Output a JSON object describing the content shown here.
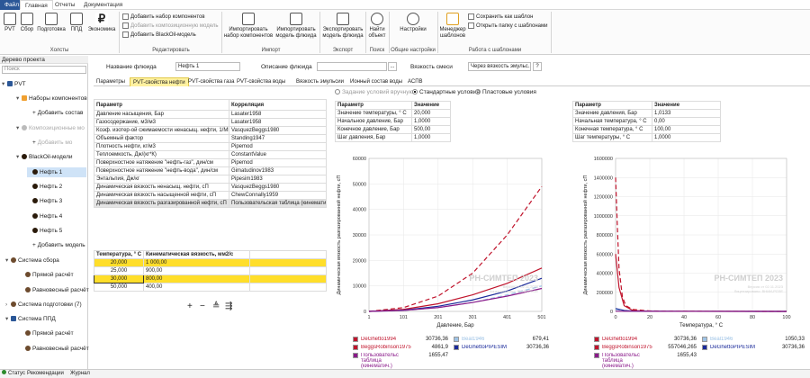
{
  "menu": {
    "file": "Файл",
    "tabs": [
      "Главная",
      "Отчеты",
      "Документация"
    ]
  },
  "ribbon": {
    "buttons": [
      "PVT",
      "Сбор",
      "Подготовка",
      "ППД",
      "Экономика"
    ],
    "group_wells": "Холсты",
    "edit_items": [
      "Добавить набор компонентов",
      "Добавить композиционную модель",
      "Добавить BlackOil-модель"
    ],
    "group_edit": "Редактировать",
    "import_buttons": [
      "Импортировать набор компонентов",
      "Импортировать модель флюида"
    ],
    "group_import": "Импорт",
    "export_button": "Экспортировать модель флюида",
    "group_export": "Экспорт",
    "find_button": "Найти объект",
    "group_find": "Поиск",
    "settings_button": "Настройки",
    "group_settings": "Общие настройки",
    "template_manager": "Менеджер шаблонов",
    "template_items": [
      "Сохранить как шаблон",
      "Открыть папку с шаблонами"
    ],
    "group_templates": "Работа с шаблонами"
  },
  "tree": {
    "title": "Дерево проекта",
    "search_placeholder": "Поиск",
    "items": [
      {
        "label": "PVT",
        "toggle": "▾"
      },
      {
        "label": "Наборы компонентов",
        "toggle": "▾"
      },
      {
        "label": "Добавить состав",
        "toggle": ""
      },
      {
        "label": "Композиционные мо",
        "toggle": "▾"
      },
      {
        "label": "Добавить мо",
        "toggle": ""
      },
      {
        "label": "BlackOil-модели",
        "toggle": "▾"
      },
      {
        "label": "Нефть 1",
        "toggle": ""
      },
      {
        "label": "Нефть 2",
        "toggle": ""
      },
      {
        "label": "Нефть 3",
        "toggle": ""
      },
      {
        "label": "Нефть 4",
        "toggle": ""
      },
      {
        "label": "Нефть 5",
        "toggle": ""
      },
      {
        "label": "Добавить модель",
        "toggle": ""
      },
      {
        "label": "Система сбора",
        "toggle": "▾"
      },
      {
        "label": "Прямой расчёт",
        "toggle": ""
      },
      {
        "label": "Равновесный расчёт",
        "toggle": ""
      },
      {
        "label": "Система подготовки (7)",
        "toggle": "›"
      },
      {
        "label": "Система ППД",
        "toggle": "▾"
      },
      {
        "label": "Прямой расчёт",
        "toggle": ""
      },
      {
        "label": "Равновесный расчёт",
        "toggle": ""
      }
    ]
  },
  "status": [
    "Статус",
    "Рекомендации",
    "Журнал"
  ],
  "fluid": {
    "name_label": "Название флюида",
    "name_value": "Нефть 1",
    "desc_label": "Описание флюида",
    "desc_value": "",
    "desc_btn": "...",
    "mix_label": "Вязкость смеси",
    "mix_value": "Через вязкость эмульс...",
    "mix_btn": "?"
  },
  "tabs": [
    "Параметры",
    "PVT-свойства нефти",
    "PVT-свойства газа",
    "PVT-свойства воды",
    "Вязкость эмульсии",
    "Ионный состав воды",
    "АСПВ"
  ],
  "corr": {
    "headers": [
      "Параметр",
      "Корреляция"
    ],
    "rows": [
      [
        "Давление насыщения, Бар",
        "Lasater1958"
      ],
      [
        "Газосодержание, м3/м3",
        "Lasater1958"
      ],
      [
        "Коэф. изотер-ой сжимаемости ненасыщ. нефти, 1/МПа",
        "VasquezBeggs1980"
      ],
      [
        "Объемный фактор",
        "Standing1947"
      ],
      [
        "Плотность нефти, кг/м3",
        "Pipemod"
      ],
      [
        "Теплоемкость, Дж/(кг*К)",
        "ConstantValue"
      ],
      [
        "Поверхностное натяжение \"нефть-газ\", дин/см",
        "Pipemod"
      ],
      [
        "Поверхностное натяжение \"нефть-вода\", дин/см",
        "Gimatudinov1983"
      ],
      [
        "Энтальпия, Дж/кг",
        "Pipesim1983"
      ],
      [
        "Динамическая вязкость ненасыщ. нефти, сП",
        "VasquezBeggs1980"
      ],
      [
        "Динамическая вязкость насыщенной нефти, сП",
        "ChewConnally1959"
      ],
      [
        "Динамическая вязкость разгазированной нефти, сП",
        "Пользовательская таблица (кинематич..."
      ]
    ]
  },
  "kin": {
    "headers": [
      "Температура, ° C",
      "Кинематическая вязкость, мм2/с"
    ],
    "rows": [
      [
        "20,000",
        "1 000,00"
      ],
      [
        "25,000",
        "900,00"
      ],
      [
        "30,000",
        "800,00"
      ],
      [
        "50,000",
        "400,00"
      ]
    ],
    "tools": [
      "+",
      "−",
      "≜",
      "⇶"
    ]
  },
  "radios": [
    "Задание условий вручную",
    "Стандартные условия",
    "Пластовые условия"
  ],
  "tbl_left": {
    "headers": [
      "Параметр",
      "Значение"
    ],
    "rows": [
      [
        "Значение температуры, ° C",
        "20,000"
      ],
      [
        "Начальное давление, Бар",
        "1,0000"
      ],
      [
        "Конечное давление, Бар",
        "500,00"
      ],
      [
        "Шаг давления, Бар",
        "1,0000"
      ]
    ]
  },
  "tbl_right": {
    "headers": [
      "Параметр",
      "Значение"
    ],
    "rows": [
      [
        "Значение давления, Бар",
        "1,0133"
      ],
      [
        "Начальная температура, ° C",
        "0,00"
      ],
      [
        "Конечная температура, ° C",
        "100,00"
      ],
      [
        "Шаг температуры, ° C",
        "1,0000"
      ]
    ]
  },
  "watermark": {
    "title": "РН-СИМТЕП 2023",
    "line1": "Версия от 02.11.2023",
    "line2": "Лицензировано: ВНИИ-РОЗЕ"
  },
  "chart_data": [
    {
      "type": "line",
      "ylabel": "Динамическая вязкость разгазированной нефти, сП",
      "xlabel": "Давление, Бар",
      "xlim": [
        1,
        501
      ],
      "ylim": [
        0,
        60000
      ],
      "xticks": [
        "1",
        "101",
        "201",
        "301",
        "401",
        "501"
      ],
      "yticks": [
        "0",
        "10000",
        "20000",
        "30000",
        "40000",
        "50000",
        "60000"
      ],
      "series": [
        {
          "name": "DeGhetto1994",
          "value": "30736,36",
          "color": "#c0142c",
          "dash": true,
          "x": [
            1,
            101,
            201,
            301,
            401,
            501
          ],
          "y": [
            0,
            1500,
            6000,
            15000,
            30000,
            49000
          ]
        },
        {
          "name": "Beal1946",
          "value": "679,41",
          "color": "#9ec3e6",
          "dash": true,
          "x": [
            1,
            101,
            201,
            301,
            401,
            501
          ],
          "y": [
            0,
            300,
            1500,
            3500,
            6500,
            10000
          ]
        },
        {
          "name": "BeggsRobinson1975",
          "value": "4861,9",
          "color": "#c0142c",
          "dash": false,
          "x": [
            1,
            101,
            201,
            301,
            401,
            501
          ],
          "y": [
            0,
            800,
            3000,
            6500,
            11000,
            17000
          ]
        },
        {
          "name": "DeGhettoPIPESIM",
          "value": "30736,36",
          "color": "#1a2a9a",
          "dash": false,
          "x": [
            1,
            101,
            201,
            301,
            401,
            501
          ],
          "y": [
            0,
            500,
            2000,
            4500,
            8000,
            13000
          ]
        },
        {
          "name": "Пользовательская таблица (кинематич.)",
          "value": "1655,47",
          "color": "#8a1a8a",
          "dash": false,
          "x": [
            1,
            101,
            201,
            301,
            401,
            501
          ],
          "y": [
            0,
            400,
            1500,
            3500,
            6000,
            9000
          ]
        }
      ]
    },
    {
      "type": "line",
      "ylabel": "Динамическая вязкость разгазированной нефти, сП",
      "xlabel": "Температура, ° C",
      "xlim": [
        0,
        100
      ],
      "ylim": [
        0,
        1600000
      ],
      "xticks": [
        "0",
        "20",
        "40",
        "60",
        "80",
        "100"
      ],
      "yticks": [
        "0",
        "200000",
        "400000",
        "600000",
        "800000",
        "1000000",
        "1200000",
        "1400000",
        "1600000"
      ],
      "series": [
        {
          "name": "DeGhetto1994",
          "value": "30736,36",
          "color": "#c0142c",
          "dash": true,
          "x": [
            0,
            1,
            2,
            4,
            6,
            10,
            20,
            40,
            100
          ],
          "y": [
            1400000,
            900000,
            450000,
            150000,
            60000,
            20000,
            5000,
            1000,
            100
          ]
        },
        {
          "name": "Beal1946",
          "value": "1050,33",
          "color": "#9ec3e6",
          "dash": true,
          "x": [
            0,
            5,
            10,
            20,
            100
          ],
          "y": [
            20000,
            8000,
            3000,
            1000,
            50
          ]
        },
        {
          "name": "BeggsRobinson1975",
          "value": "557046,265",
          "color": "#c0142c",
          "dash": false,
          "x": [
            0,
            2,
            5,
            10,
            20,
            100
          ],
          "y": [
            600000,
            250000,
            60000,
            10000,
            2000,
            50
          ]
        },
        {
          "name": "DeGhettoPIPESIM",
          "value": "30736,36",
          "color": "#1a2a9a",
          "dash": false,
          "x": [
            0,
            5,
            10,
            20,
            100
          ],
          "y": [
            30000,
            10000,
            4000,
            1000,
            50
          ]
        },
        {
          "name": "Пользовательская таблица (кинематич.)",
          "value": "1655,43",
          "color": "#8a1a8a",
          "dash": false,
          "x": [
            0,
            20,
            30,
            50,
            100
          ],
          "y": [
            2000,
            1000,
            800,
            400,
            50
          ]
        }
      ]
    }
  ]
}
